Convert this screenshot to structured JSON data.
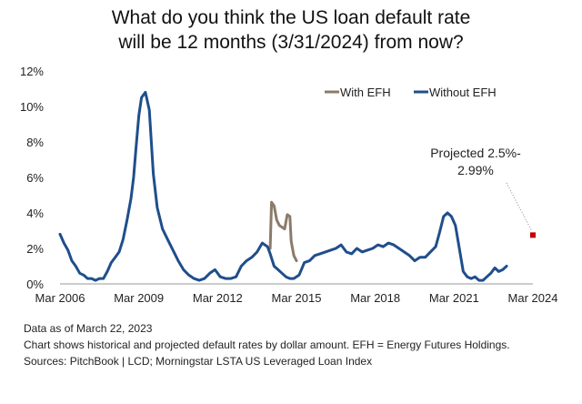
{
  "chart_data": {
    "type": "line",
    "title_lines": [
      "What do you think the US loan default rate",
      "will be 12 months (3/31/2024) from now?"
    ],
    "ylim": [
      0,
      12
    ],
    "yticks": [
      0,
      2,
      4,
      6,
      8,
      10,
      12
    ],
    "ytick_labels": [
      "0%",
      "2%",
      "4%",
      "6%",
      "8%",
      "10%",
      "12%"
    ],
    "xlim": [
      2006.2,
      2024.2
    ],
    "xticks": [
      2006.2,
      2009.2,
      2012.2,
      2015.2,
      2018.2,
      2021.2,
      2024.2
    ],
    "xtick_labels": [
      "Mar 2006",
      "Mar 2009",
      "Mar 2012",
      "Mar 2015",
      "Mar 2018",
      "Mar 2021",
      "Mar 2024"
    ],
    "legend": [
      "With EFH",
      "Without EFH"
    ],
    "colors": {
      "with_efh": "#8c7b6b",
      "without_efh": "#1f4e8c",
      "projected": "#c00000",
      "callout_line": "#888888"
    },
    "series": [
      {
        "name": "Without EFH",
        "x": [
          2006.2,
          2006.35,
          2006.5,
          2006.65,
          2006.8,
          2006.95,
          2007.1,
          2007.25,
          2007.4,
          2007.55,
          2007.7,
          2007.85,
          2008.0,
          2008.15,
          2008.3,
          2008.45,
          2008.6,
          2008.75,
          2008.9,
          2009.0,
          2009.1,
          2009.2,
          2009.3,
          2009.45,
          2009.6,
          2009.75,
          2009.9,
          2010.1,
          2010.3,
          2010.5,
          2010.7,
          2010.9,
          2011.1,
          2011.3,
          2011.5,
          2011.7,
          2011.9,
          2012.1,
          2012.3,
          2012.5,
          2012.7,
          2012.9,
          2013.1,
          2013.3,
          2013.5,
          2013.7,
          2013.9,
          2014.1,
          2014.2,
          2014.35,
          2014.5,
          2014.65,
          2014.8,
          2014.95,
          2015.1,
          2015.3,
          2015.5,
          2015.7,
          2015.9,
          2016.1,
          2016.3,
          2016.5,
          2016.7,
          2016.9,
          2017.1,
          2017.3,
          2017.5,
          2017.7,
          2017.9,
          2018.1,
          2018.3,
          2018.5,
          2018.7,
          2018.9,
          2019.1,
          2019.3,
          2019.5,
          2019.7,
          2019.9,
          2020.1,
          2020.3,
          2020.5,
          2020.65,
          2020.8,
          2020.95,
          2021.1,
          2021.25,
          2021.4,
          2021.55,
          2021.7,
          2021.85,
          2022.0,
          2022.15,
          2022.3,
          2022.45,
          2022.6,
          2022.75,
          2022.9,
          2023.05,
          2023.2
        ],
        "values": [
          2.8,
          2.3,
          1.9,
          1.3,
          1.0,
          0.6,
          0.5,
          0.3,
          0.3,
          0.2,
          0.3,
          0.3,
          0.7,
          1.2,
          1.5,
          1.8,
          2.5,
          3.6,
          4.8,
          6.0,
          7.8,
          9.5,
          10.5,
          10.8,
          9.8,
          6.2,
          4.3,
          3.1,
          2.5,
          1.9,
          1.3,
          0.8,
          0.5,
          0.3,
          0.2,
          0.3,
          0.6,
          0.8,
          0.4,
          0.3,
          0.3,
          0.4,
          1.0,
          1.3,
          1.5,
          1.8,
          2.3,
          2.1,
          1.7,
          1.0,
          0.8,
          0.6,
          0.4,
          0.3,
          0.3,
          0.5,
          1.2,
          1.3,
          1.6,
          1.7,
          1.8,
          1.9,
          2.0,
          2.2,
          1.8,
          1.7,
          2.0,
          1.8,
          1.9,
          2.0,
          2.2,
          2.1,
          2.3,
          2.2,
          2.0,
          1.8,
          1.6,
          1.3,
          1.5,
          1.5,
          1.8,
          2.1,
          2.9,
          3.8,
          4.0,
          3.8,
          3.3,
          2.0,
          0.7,
          0.4,
          0.3,
          0.4,
          0.2,
          0.2,
          0.4,
          0.6,
          0.9,
          0.7,
          0.8,
          1.0
        ]
      },
      {
        "name": "With EFH",
        "x": [
          2014.2,
          2014.25,
          2014.35,
          2014.45,
          2014.55,
          2014.65,
          2014.75,
          2014.85,
          2014.95,
          2015.0,
          2015.1,
          2015.2
        ],
        "values": [
          2.0,
          4.6,
          4.4,
          3.6,
          3.3,
          3.2,
          3.1,
          3.9,
          3.8,
          2.4,
          1.6,
          1.3
        ]
      }
    ],
    "projection": {
      "label_lines": [
        "Projected 2.5%-",
        "2.99%"
      ],
      "x": 2024.2,
      "low": 2.5,
      "high": 2.99,
      "value": 2.75
    }
  },
  "notes": {
    "date": "Data as of March 22, 2023",
    "description": "Chart shows historical and projected default rates by dollar amount. EFH = Energy Futures Holdings.",
    "sources": "Sources: PitchBook | LCD; Morningstar LSTA US Leveraged Loan Index"
  }
}
